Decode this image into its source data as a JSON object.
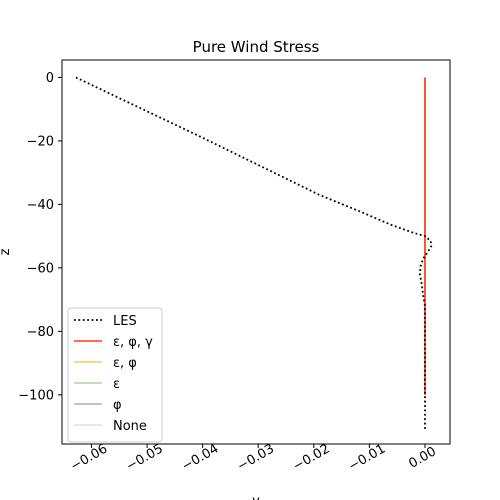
{
  "chart_data": {
    "type": "line",
    "title": "Pure Wind Stress",
    "xlabel": "y",
    "ylabel": "z",
    "xlim": [
      -0.0653,
      0.0045
    ],
    "ylim": [
      -115.5,
      5.5
    ],
    "xticks": [
      -0.06,
      -0.05,
      -0.04,
      -0.03,
      -0.02,
      -0.01,
      0.0
    ],
    "xtick_labels": [
      "−0.06",
      "−0.05",
      "−0.04",
      "−0.03",
      "−0.02",
      "−0.01",
      "0.00"
    ],
    "yticks": [
      0,
      -20,
      -40,
      -60,
      -80,
      -100
    ],
    "ytick_labels": [
      "0",
      "−20",
      "−40",
      "−60",
      "−80",
      "−100"
    ],
    "grid": false,
    "legend_position": "lower-left",
    "series": [
      {
        "name": "LES",
        "color": "#000000",
        "style": "dotted",
        "points": [
          [
            -0.0628,
            0
          ],
          [
            -0.058,
            -4
          ],
          [
            -0.052,
            -9
          ],
          [
            -0.046,
            -14
          ],
          [
            -0.04,
            -19
          ],
          [
            -0.033,
            -25
          ],
          [
            -0.026,
            -31
          ],
          [
            -0.019,
            -37
          ],
          [
            -0.012,
            -42
          ],
          [
            -0.006,
            -46.5
          ],
          [
            -0.002,
            -49
          ],
          [
            0.0,
            -50
          ],
          [
            0.001,
            -51.5
          ],
          [
            0.0012,
            -53
          ],
          [
            0.0005,
            -55
          ],
          [
            -0.0003,
            -57
          ],
          [
            -0.0008,
            -59.5
          ],
          [
            -0.0009,
            -62
          ],
          [
            -0.0006,
            -65
          ],
          [
            -0.0003,
            -69
          ],
          [
            0.0,
            -72
          ],
          [
            0.0,
            -80
          ],
          [
            0.0,
            -90
          ],
          [
            0.0,
            -100
          ],
          [
            0.0,
            -111
          ]
        ]
      },
      {
        "name": "ε, φ, γ",
        "color": "#ff3b1f",
        "style": "solid",
        "points": [
          [
            0.0,
            0
          ],
          [
            0.0,
            -100
          ]
        ]
      },
      {
        "name": "ε, φ",
        "color": "#ffc65c",
        "style": "solid",
        "points": [
          [
            0.0,
            0
          ],
          [
            0.0,
            -100
          ]
        ]
      },
      {
        "name": "ε",
        "color": "#a9d3a5",
        "style": "solid",
        "points": [
          [
            0.0,
            0
          ],
          [
            0.0,
            -100
          ]
        ]
      },
      {
        "name": "φ",
        "color": "#b3a7d1",
        "style": "solid",
        "points": [
          [
            0.0,
            0
          ],
          [
            0.0,
            -100
          ]
        ]
      },
      {
        "name": "None",
        "color": "#dddddd",
        "style": "solid",
        "points": [
          [
            0.0,
            0
          ],
          [
            0.0,
            -100
          ]
        ]
      }
    ]
  }
}
